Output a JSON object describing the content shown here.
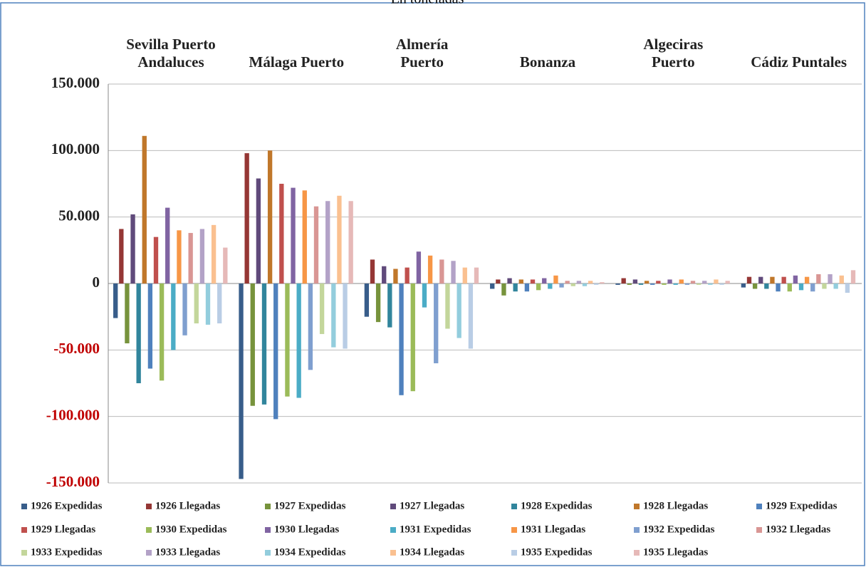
{
  "chart_data": {
    "type": "bar",
    "title": "En toneladas",
    "categories": [
      "Sevilla Puerto\nAndaluces",
      "Málaga Puerto",
      "Almería\nPuerto",
      "Bonanza",
      "Algeciras\nPuerto",
      "Cádiz Puntales"
    ],
    "ylim": [
      -150000,
      150000
    ],
    "yticks": [
      {
        "value": -150000,
        "label": "-150.000"
      },
      {
        "value": -100000,
        "label": "-100.000"
      },
      {
        "value": -50000,
        "label": "-50.000"
      },
      0,
      {
        "value": 50000,
        "label": "50.000"
      },
      {
        "value": 100000,
        "label": "100.000"
      },
      {
        "value": 150000,
        "label": "150.000"
      }
    ],
    "grid": true,
    "legend": "bottom",
    "series": [
      {
        "name": "1926 Expedidas",
        "color": "#385d8a",
        "values": [
          -26000,
          -147000,
          -25000,
          -4000,
          -1000,
          -3000
        ]
      },
      {
        "name": "1926 Llegadas",
        "color": "#953735",
        "values": [
          41000,
          98000,
          18000,
          3000,
          4000,
          5000
        ]
      },
      {
        "name": "1927 Expedidas",
        "color": "#77933c",
        "values": [
          -45000,
          -92000,
          -29000,
          -9000,
          -1000,
          -4000
        ]
      },
      {
        "name": "1927 Llegadas",
        "color": "#604a7b",
        "values": [
          52000,
          79000,
          13000,
          4000,
          3000,
          5000
        ]
      },
      {
        "name": "1928 Expedidas",
        "color": "#31859c",
        "values": [
          -75000,
          -91000,
          -33000,
          -6000,
          -1000,
          -4000
        ]
      },
      {
        "name": "1928 Llegadas",
        "color": "#c0772a",
        "values": [
          111000,
          100000,
          11000,
          3000,
          2000,
          5000
        ]
      },
      {
        "name": "1929 Expedidas",
        "color": "#4f81bd",
        "values": [
          -64000,
          -102000,
          -84000,
          -6000,
          -1000,
          -6000
        ]
      },
      {
        "name": "1929 Llegadas",
        "color": "#c0504d",
        "values": [
          35000,
          75000,
          12000,
          3000,
          2000,
          5000
        ]
      },
      {
        "name": "1930 Expedidas",
        "color": "#9bbb59",
        "values": [
          -73000,
          -85000,
          -81000,
          -5000,
          -1000,
          -6000
        ]
      },
      {
        "name": "1930 Llegadas",
        "color": "#8064a2",
        "values": [
          57000,
          72000,
          24000,
          4000,
          3000,
          6000
        ]
      },
      {
        "name": "1931 Expedidas",
        "color": "#4bacc6",
        "values": [
          -50000,
          -86000,
          -18000,
          -4000,
          -1000,
          -5000
        ]
      },
      {
        "name": "1931 Llegadas",
        "color": "#f79646",
        "values": [
          40000,
          70000,
          21000,
          6000,
          3000,
          5000
        ]
      },
      {
        "name": "1932 Expedidas",
        "color": "#7f9fcf",
        "values": [
          -39000,
          -65000,
          -60000,
          -3000,
          -1000,
          -6000
        ]
      },
      {
        "name": "1932 Llegadas",
        "color": "#d99694",
        "values": [
          38000,
          58000,
          18000,
          2000,
          2000,
          7000
        ]
      },
      {
        "name": "1933 Expedidas",
        "color": "#c3d69b",
        "values": [
          -30000,
          -38000,
          -34000,
          -2000,
          -1000,
          -4000
        ]
      },
      {
        "name": "1933 Llegadas",
        "color": "#b3a2c7",
        "values": [
          41000,
          62000,
          17000,
          2000,
          2000,
          7000
        ]
      },
      {
        "name": "1934 Expedidas",
        "color": "#93cddd",
        "values": [
          -31000,
          -48000,
          -41000,
          -2000,
          -1000,
          -4000
        ]
      },
      {
        "name": "1934 Llegadas",
        "color": "#fac090",
        "values": [
          44000,
          66000,
          12000,
          2000,
          3000,
          6000
        ]
      },
      {
        "name": "1935 Expedidas",
        "color": "#b9cde5",
        "values": [
          -30000,
          -49000,
          -49000,
          -1000,
          -1000,
          -7000
        ]
      },
      {
        "name": "1935 Llegadas",
        "color": "#e6b9b8",
        "values": [
          27000,
          62000,
          12000,
          1000,
          2000,
          10000
        ]
      }
    ]
  }
}
